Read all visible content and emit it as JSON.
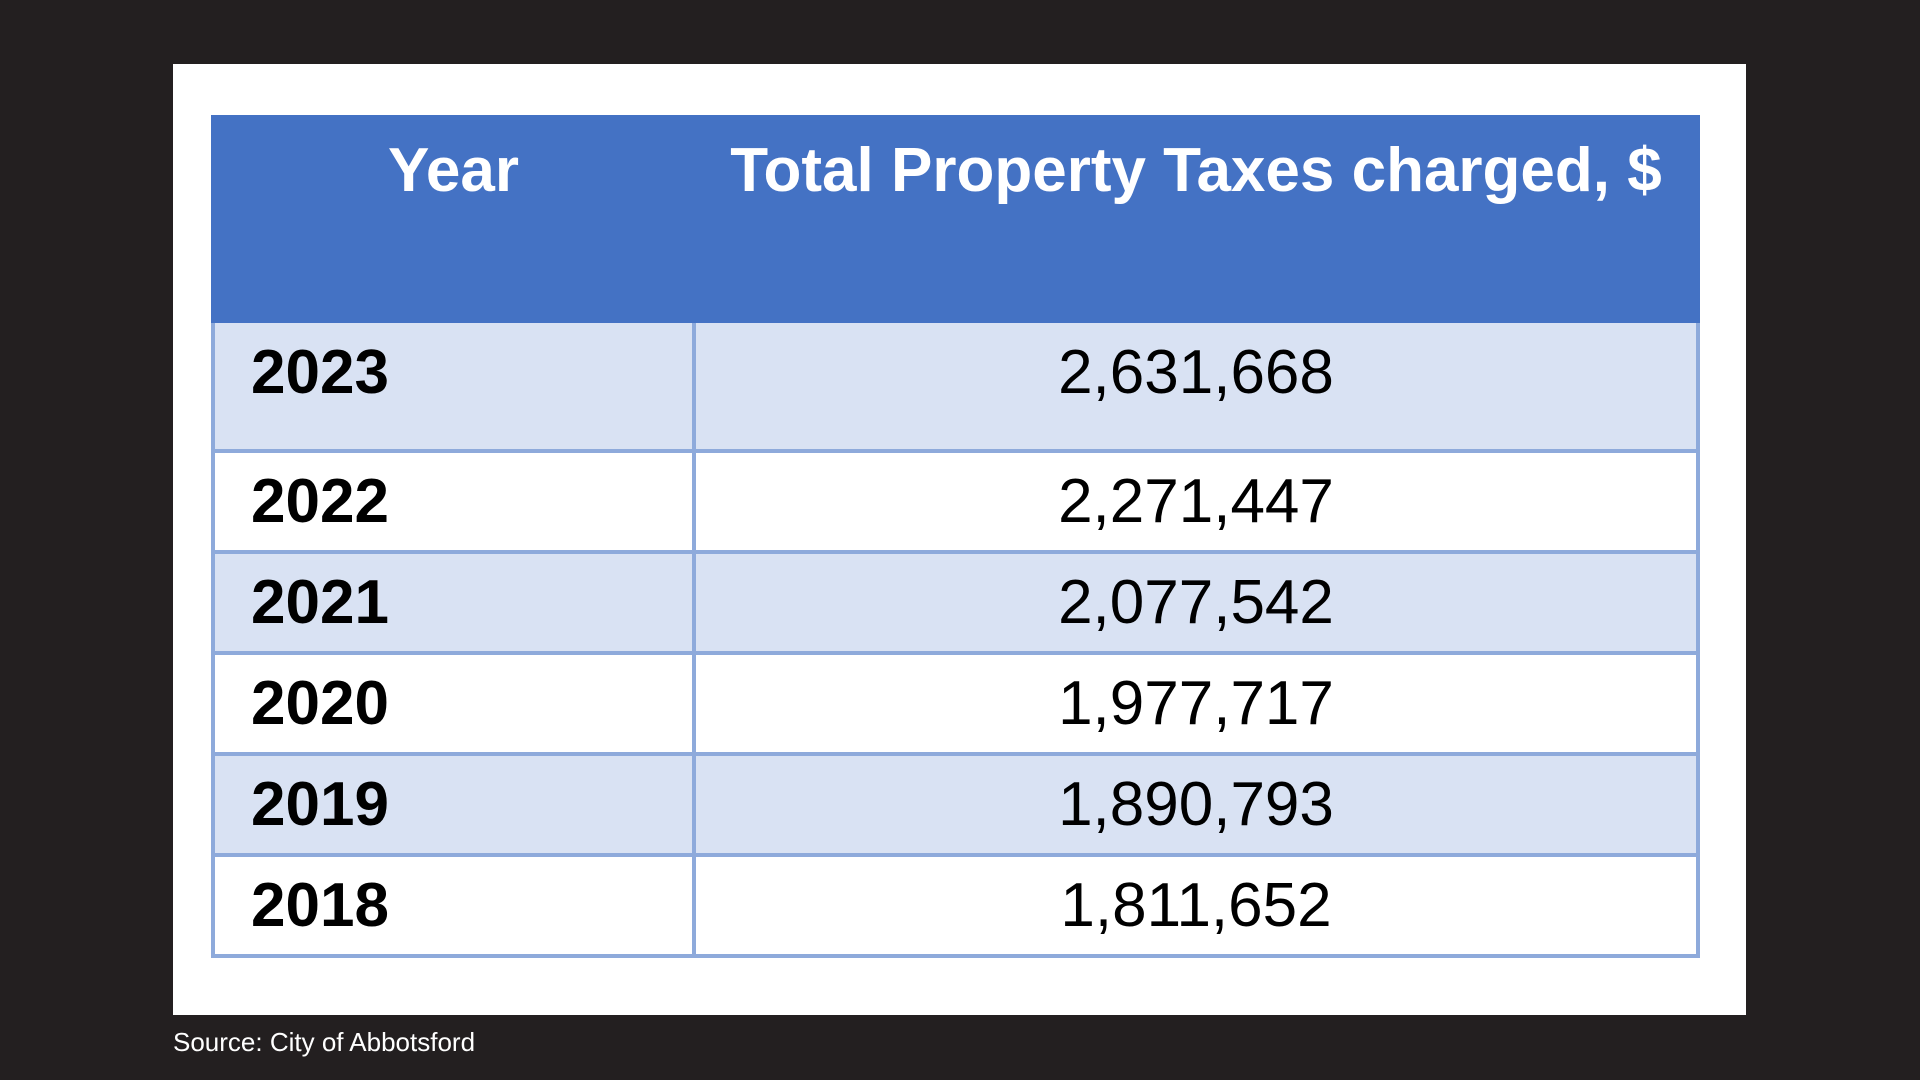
{
  "table": {
    "headers": {
      "year": "Year",
      "taxes": "Total Property Taxes charged, $"
    },
    "rows": [
      {
        "year": "2023",
        "taxes": "2,631,668"
      },
      {
        "year": "2022",
        "taxes": "2,271,447"
      },
      {
        "year": "2021",
        "taxes": "2,077,542"
      },
      {
        "year": "2020",
        "taxes": "1,977,717"
      },
      {
        "year": "2019",
        "taxes": "1,890,793"
      },
      {
        "year": "2018",
        "taxes": "1,811,652"
      }
    ]
  },
  "source": "Source: City of Abbotsford",
  "colors": {
    "background": "#231f20",
    "card": "#ffffff",
    "header": "#4472c4",
    "row_shade": "#d9e2f3",
    "border": "#8eaadb"
  }
}
